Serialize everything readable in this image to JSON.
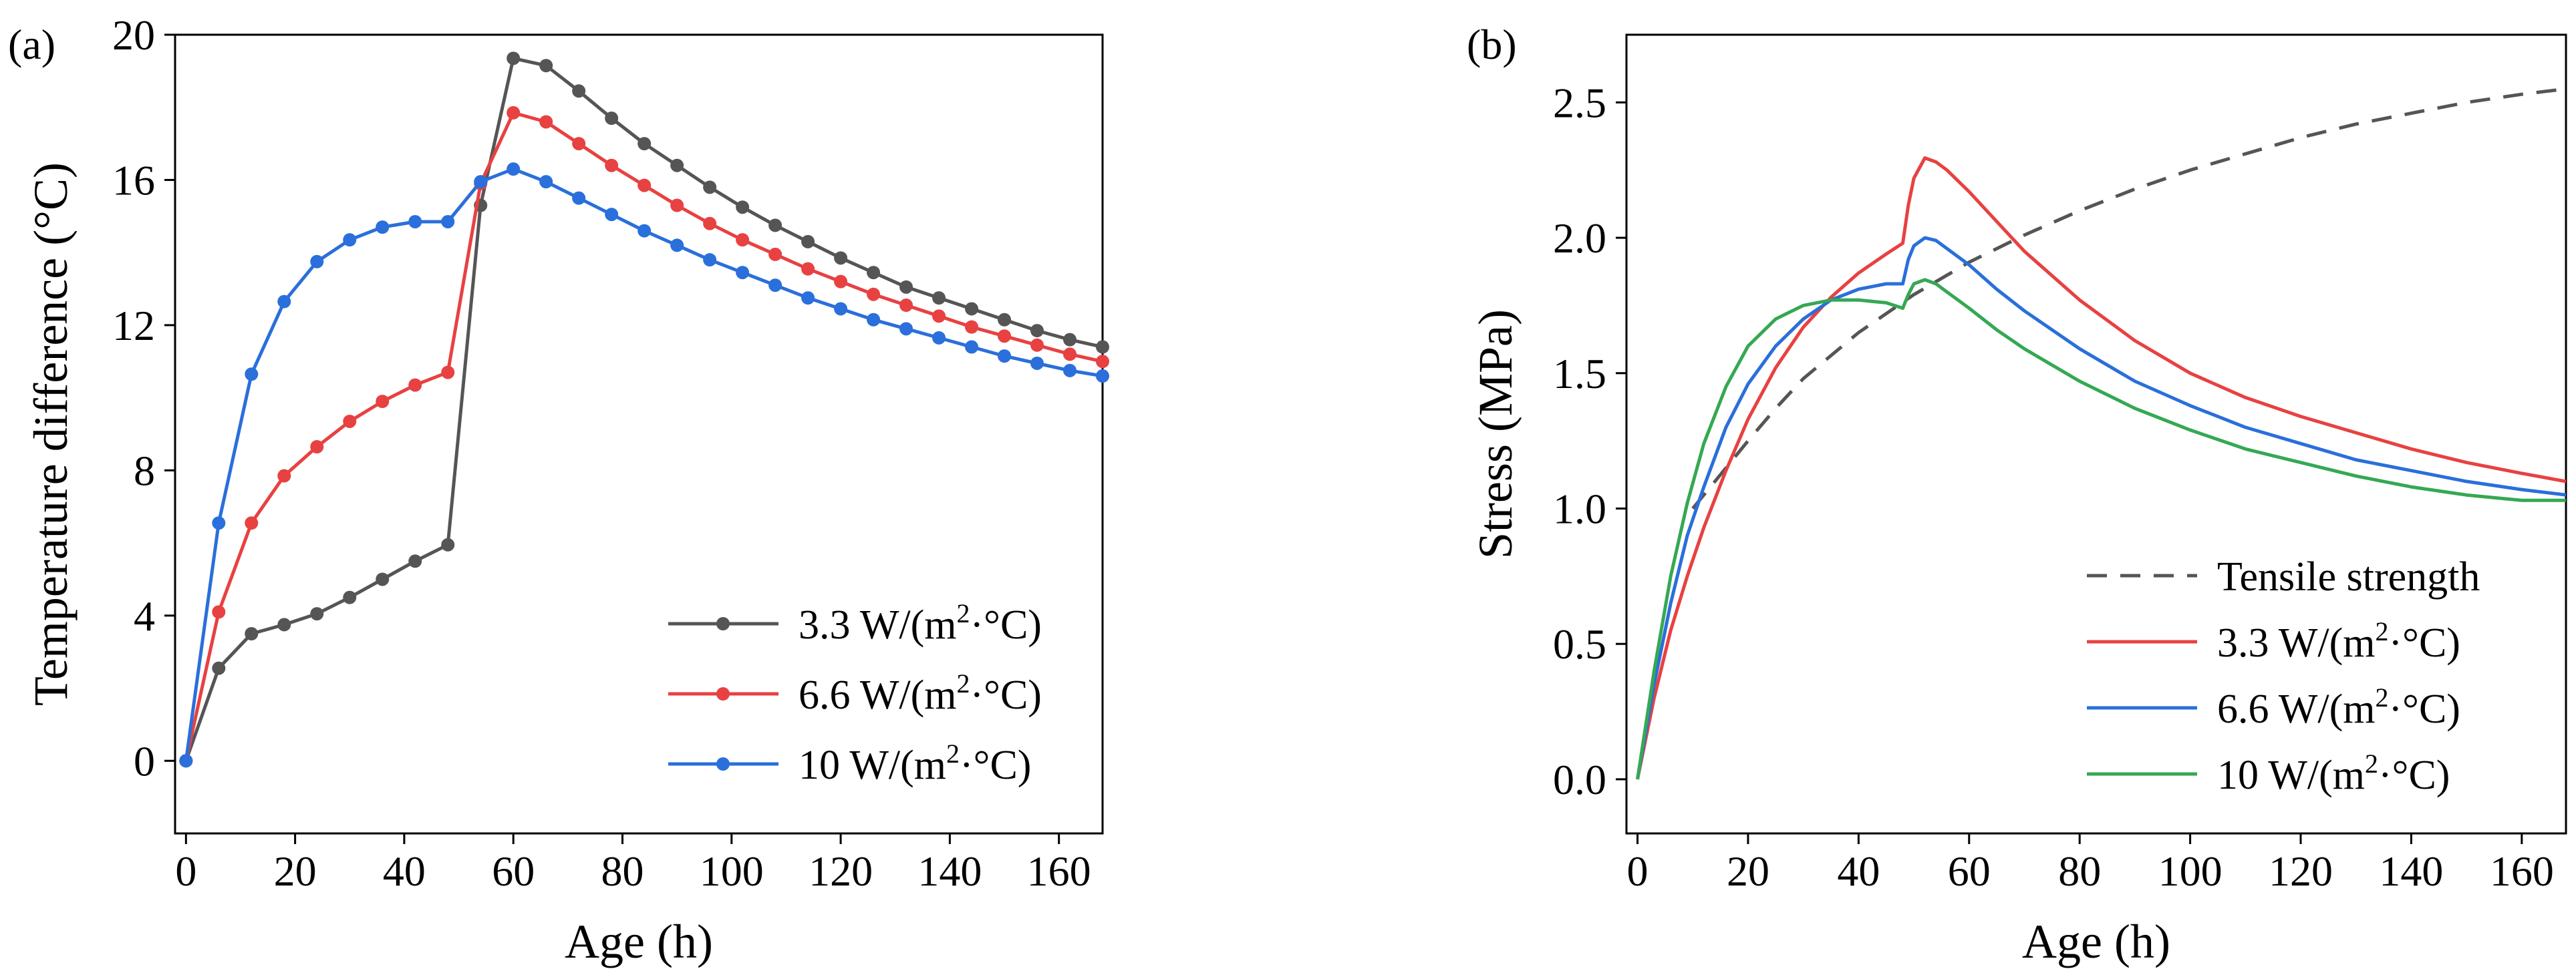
{
  "figure": {
    "panels": [
      "(a)",
      "(b)"
    ]
  },
  "chart_data": [
    {
      "type": "line",
      "panel": "(a)",
      "title": "",
      "xlabel": "Age (h)",
      "ylabel": "Temperature difference (°C)",
      "xlim": [
        -2,
        168
      ],
      "ylim": [
        -2,
        20
      ],
      "xticks": [
        0,
        20,
        40,
        60,
        80,
        100,
        120,
        140,
        160
      ],
      "yticks": [
        0,
        4,
        8,
        12,
        16,
        20
      ],
      "grid": false,
      "legend_position": "bottom-right",
      "x": [
        0,
        6,
        12,
        18,
        24,
        30,
        36,
        42,
        48,
        54,
        60,
        66,
        72,
        78,
        84,
        90,
        96,
        102,
        108,
        114,
        120,
        126,
        132,
        138,
        144,
        150,
        156,
        162,
        168
      ],
      "series": [
        {
          "name": "3.3 W/(m2·°C)",
          "label_pre": "3.3 W/(m",
          "label_sup": "2",
          "label_post": "·°C)",
          "color": "#555555",
          "values": [
            0,
            2.55,
            3.5,
            3.75,
            4.05,
            4.5,
            5.0,
            5.5,
            5.95,
            15.3,
            19.35,
            19.15,
            18.45,
            17.7,
            17.0,
            16.4,
            15.8,
            15.25,
            14.75,
            14.3,
            13.85,
            13.45,
            13.05,
            12.75,
            12.45,
            12.15,
            11.85,
            11.6,
            11.4
          ]
        },
        {
          "name": "6.6 W/(m2·°C)",
          "label_pre": "6.6 W/(m",
          "label_sup": "2",
          "label_post": "·°C)",
          "color": "#e84141",
          "values": [
            0,
            4.1,
            6.55,
            7.85,
            8.65,
            9.35,
            9.9,
            10.35,
            10.7,
            15.9,
            17.85,
            17.6,
            17.0,
            16.4,
            15.85,
            15.3,
            14.8,
            14.35,
            13.95,
            13.55,
            13.2,
            12.85,
            12.55,
            12.25,
            11.95,
            11.7,
            11.45,
            11.2,
            11.0
          ]
        },
        {
          "name": "10 W/(m2·°C)",
          "label_pre": "10 W/(m",
          "label_sup": "2",
          "label_post": "·°C)",
          "color": "#2a6fdb",
          "values": [
            0,
            6.55,
            10.65,
            12.65,
            13.75,
            14.35,
            14.7,
            14.85,
            14.85,
            15.95,
            16.3,
            15.95,
            15.5,
            15.05,
            14.6,
            14.2,
            13.8,
            13.45,
            13.1,
            12.75,
            12.45,
            12.15,
            11.9,
            11.65,
            11.4,
            11.15,
            10.95,
            10.75,
            10.6
          ]
        }
      ]
    },
    {
      "type": "line",
      "panel": "(b)",
      "title": "",
      "xlabel": "Age (h)",
      "ylabel": "Stress (MPa)",
      "xlim": [
        -2,
        168
      ],
      "ylim": [
        -0.2,
        2.75
      ],
      "xticks": [
        0,
        20,
        40,
        60,
        80,
        100,
        120,
        140,
        160
      ],
      "yticks": [
        0.0,
        0.5,
        1.0,
        1.5,
        2.0,
        2.5
      ],
      "ytick_labels": [
        "0.0",
        "0.5",
        "1.0",
        "1.5",
        "2.0",
        "2.5"
      ],
      "grid": false,
      "legend_position": "bottom-right",
      "series": [
        {
          "name": "Tensile strength",
          "label_pre": "Tensile strength",
          "label_sup": "",
          "label_post": "",
          "color": "#555555",
          "dash": true,
          "x": [
            10,
            12,
            16,
            20,
            25,
            30,
            40,
            50,
            60,
            70,
            80,
            90,
            100,
            110,
            120,
            130,
            140,
            150,
            160,
            168
          ],
          "values": [
            1.0,
            1.05,
            1.15,
            1.25,
            1.37,
            1.48,
            1.65,
            1.79,
            1.91,
            2.01,
            2.1,
            2.18,
            2.25,
            2.31,
            2.37,
            2.42,
            2.46,
            2.5,
            2.53,
            2.55
          ]
        },
        {
          "name": "3.3 W/(m2·°C)",
          "label_pre": "3.3 W/(m",
          "label_sup": "2",
          "label_post": "·°C)",
          "color": "#e84141",
          "x": [
            0,
            3,
            6,
            9,
            12,
            16,
            20,
            25,
            30,
            35,
            40,
            45,
            48,
            49,
            50,
            52,
            54,
            56,
            60,
            65,
            70,
            80,
            90,
            100,
            110,
            120,
            130,
            140,
            150,
            160,
            168
          ],
          "values": [
            0,
            0.3,
            0.55,
            0.75,
            0.93,
            1.14,
            1.33,
            1.52,
            1.67,
            1.78,
            1.87,
            1.94,
            1.98,
            2.12,
            2.22,
            2.295,
            2.28,
            2.25,
            2.17,
            2.06,
            1.95,
            1.77,
            1.62,
            1.5,
            1.41,
            1.34,
            1.28,
            1.22,
            1.17,
            1.13,
            1.1
          ]
        },
        {
          "name": "6.6 W/(m2·°C)",
          "label_pre": "6.6 W/(m",
          "label_sup": "2",
          "label_post": "·°C)",
          "color": "#2a6fdb",
          "x": [
            0,
            3,
            6,
            9,
            12,
            16,
            20,
            25,
            30,
            35,
            40,
            45,
            48,
            49,
            50,
            52,
            54,
            56,
            60,
            65,
            70,
            80,
            90,
            100,
            110,
            120,
            130,
            140,
            150,
            160,
            168
          ],
          "values": [
            0,
            0.35,
            0.65,
            0.9,
            1.08,
            1.3,
            1.46,
            1.6,
            1.7,
            1.77,
            1.81,
            1.83,
            1.83,
            1.92,
            1.97,
            2.0,
            1.99,
            1.96,
            1.9,
            1.81,
            1.73,
            1.59,
            1.47,
            1.38,
            1.3,
            1.24,
            1.18,
            1.14,
            1.1,
            1.07,
            1.05
          ]
        },
        {
          "name": "10 W/(m2·°C)",
          "label_pre": "10 W/(m",
          "label_sup": "2",
          "label_post": "·°C)",
          "color": "#35a853",
          "x": [
            0,
            3,
            6,
            9,
            12,
            16,
            20,
            25,
            30,
            35,
            40,
            45,
            48,
            49,
            50,
            52,
            54,
            56,
            60,
            65,
            70,
            80,
            90,
            100,
            110,
            120,
            130,
            140,
            150,
            160,
            168
          ],
          "values": [
            0,
            0.4,
            0.75,
            1.02,
            1.24,
            1.45,
            1.6,
            1.7,
            1.75,
            1.77,
            1.77,
            1.76,
            1.74,
            1.79,
            1.83,
            1.845,
            1.83,
            1.8,
            1.74,
            1.66,
            1.59,
            1.47,
            1.37,
            1.29,
            1.22,
            1.17,
            1.12,
            1.08,
            1.05,
            1.03,
            1.03
          ]
        }
      ]
    }
  ]
}
